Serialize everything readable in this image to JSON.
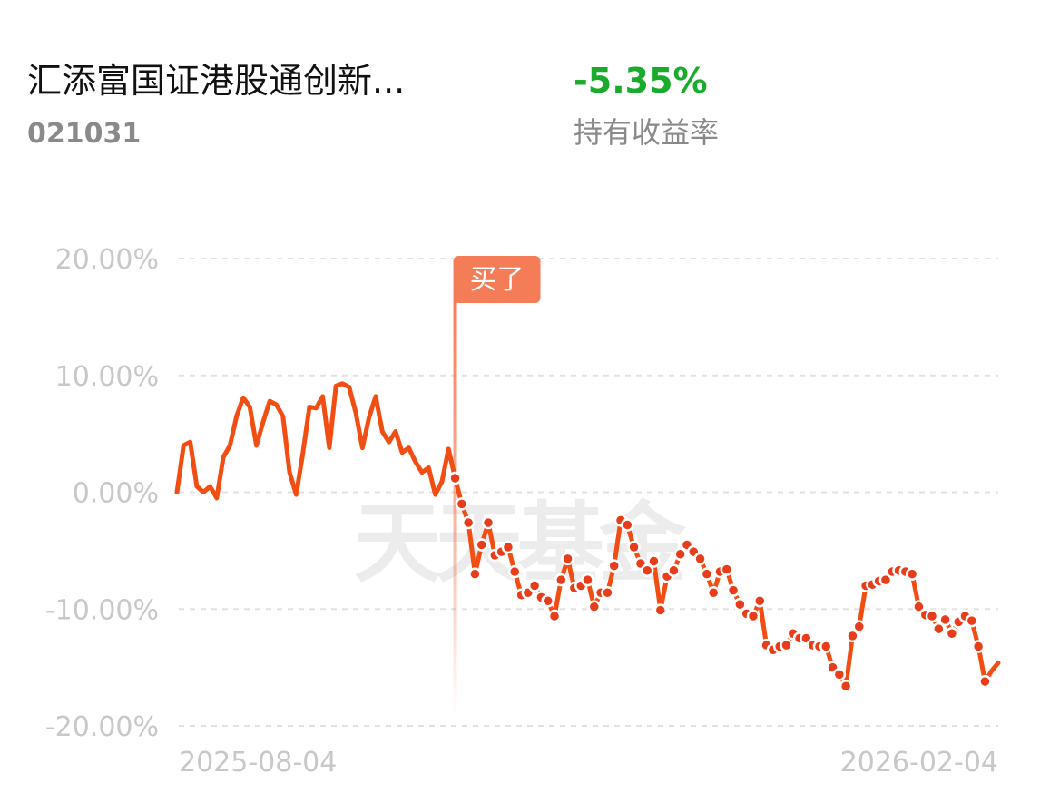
{
  "header": {
    "title": "汇添富国证港股通创新...",
    "code": "021031",
    "return_value": "-5.35%",
    "return_label": "持有收益率"
  },
  "chart_data": {
    "type": "line",
    "color": "#f24d12",
    "dot_color": "#e83d1a",
    "grid": true,
    "watermark": "天天基金",
    "annotation": {
      "text": "买了",
      "x": 42,
      "color": "#f47c57"
    },
    "ylim": [
      -20,
      20
    ],
    "yticks": [
      {
        "value": 20,
        "label": "20.00%"
      },
      {
        "value": 10,
        "label": "10.00%"
      },
      {
        "value": 0,
        "label": "0.00%"
      },
      {
        "value": -10,
        "label": "-10.00%"
      },
      {
        "value": -20,
        "label": "-20.00%"
      }
    ],
    "categories": [
      "2025-08-04",
      null,
      null,
      null,
      null,
      null,
      null,
      null,
      null,
      null,
      null,
      null,
      null,
      null,
      null,
      null,
      null,
      null,
      null,
      null,
      null,
      null,
      null,
      null,
      null,
      null,
      null,
      null,
      null,
      null,
      null,
      null,
      null,
      null,
      null,
      null,
      null,
      null,
      null,
      null,
      null,
      null,
      null,
      null,
      null,
      null,
      null,
      null,
      null,
      null,
      null,
      null,
      null,
      null,
      null,
      null,
      null,
      null,
      null,
      null,
      null,
      null,
      null,
      null,
      null,
      null,
      null,
      null,
      null,
      null,
      null,
      null,
      null,
      null,
      null,
      null,
      null,
      null,
      null,
      null,
      null,
      null,
      null,
      null,
      null,
      null,
      null,
      null,
      null,
      null,
      null,
      null,
      null,
      null,
      null,
      null,
      null,
      null,
      null,
      null,
      null,
      null,
      null,
      null,
      null,
      null,
      null,
      null,
      null,
      null,
      null,
      null,
      null,
      null,
      null,
      null,
      null,
      null,
      null,
      null,
      null,
      null,
      null,
      null,
      "2026-02-04"
    ],
    "values": [
      0,
      4.0,
      4.3,
      0.5,
      0,
      0.5,
      -0.5,
      3.0,
      4.0,
      6.5,
      8.1,
      7.3,
      4.0,
      6.0,
      7.8,
      7.5,
      6.5,
      1.7,
      -0.2,
      3.3,
      7.3,
      7.2,
      8.2,
      3.8,
      9.1,
      9.3,
      9.0,
      6.8,
      3.8,
      6.4,
      8.2,
      5.2,
      4.3,
      5.2,
      3.4,
      3.8,
      2.6,
      1.7,
      2.1,
      -0.2,
      0.9,
      3.7,
      1.2,
      -1.0,
      -2.6,
      -7.0,
      -4.5,
      -2.6,
      -5.4,
      -5.1,
      -4.7,
      -6.8,
      -8.8,
      -8.6,
      -8.0,
      -9.0,
      -9.3,
      -10.6,
      -7.5,
      -5.7,
      -8.2,
      -8.0,
      -7.5,
      -9.8,
      -8.6,
      -8.6,
      -6.3,
      -2.4,
      -2.8,
      -4.7,
      -6.1,
      -6.7,
      -5.9,
      -10.1,
      -7.2,
      -6.7,
      -5.3,
      -4.5,
      -5.1,
      -5.7,
      -7.0,
      -8.6,
      -6.8,
      -6.6,
      -8.4,
      -9.6,
      -10.4,
      -10.6,
      -9.3,
      -13.1,
      -13.5,
      -13.2,
      -13.1,
      -12.1,
      -12.5,
      -12.5,
      -13.1,
      -13.2,
      -13.2,
      -15.0,
      -15.6,
      -16.6,
      -12.3,
      -11.5,
      -8.0,
      -7.9,
      -7.6,
      -7.5,
      -6.8,
      -6.7,
      -6.8,
      -7.0,
      -9.8,
      -10.5,
      -10.6,
      -11.7,
      -10.9,
      -12.1,
      -11.1,
      -10.6,
      -11.0,
      -13.2,
      -16.2,
      -15.3,
      -14.6
    ]
  }
}
